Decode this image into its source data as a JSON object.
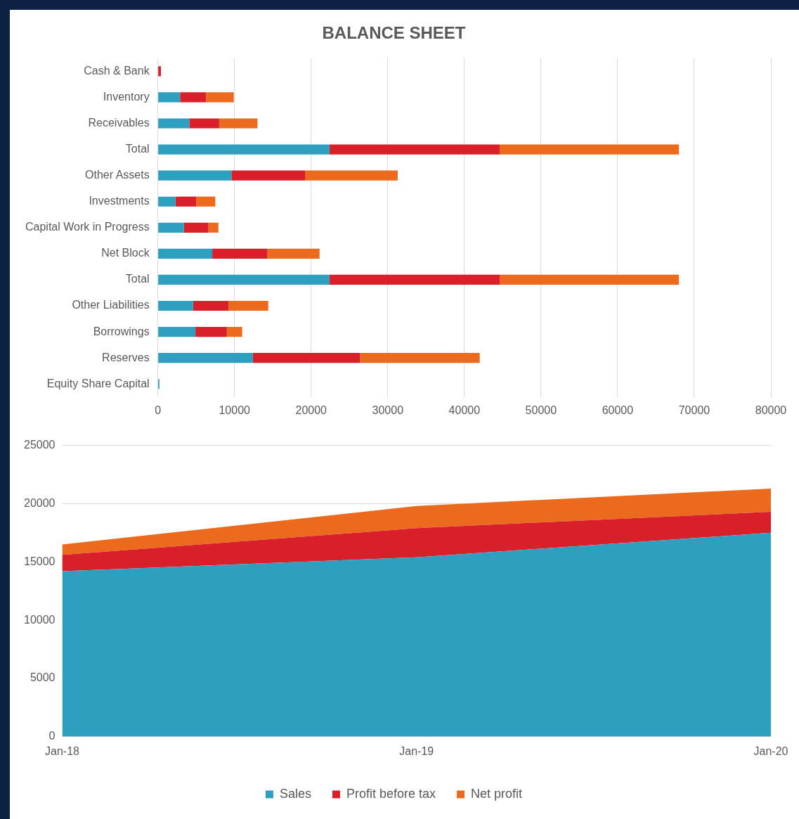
{
  "chart_data": [
    {
      "type": "bar",
      "title": "BALANCE SHEET",
      "orientation": "horizontal",
      "stacked": true,
      "categories": [
        "Cash & Bank",
        "Inventory",
        "Receivables",
        "Total",
        "Other Assets",
        "Investments",
        "Capital Work in Progress",
        "Net Block",
        "Total",
        "Other Liabilities",
        "Borrowings",
        "Reserves",
        "Equity Share Capital"
      ],
      "series": [
        {
          "color": "#2e9fbf",
          "values": [
            0,
            2900,
            4100,
            22400,
            9600,
            2300,
            3400,
            7100,
            22400,
            4600,
            4900,
            12400,
            200
          ]
        },
        {
          "color": "#d9202a",
          "values": [
            400,
            3400,
            3900,
            22200,
            9600,
            2700,
            3200,
            7200,
            22200,
            4600,
            4100,
            14000,
            0
          ]
        },
        {
          "color": "#ec6a1e",
          "values": [
            0,
            3600,
            5000,
            23400,
            12100,
            2500,
            1300,
            6800,
            23400,
            5200,
            2000,
            15600,
            0
          ]
        }
      ],
      "xlim": [
        0,
        80000
      ],
      "xticks": [
        0,
        10000,
        20000,
        30000,
        40000,
        50000,
        60000,
        70000,
        80000
      ],
      "grid": "x"
    },
    {
      "type": "area",
      "stacked": true,
      "categories": [
        "Jan-18",
        "Jan-19",
        "Jan-20"
      ],
      "series": [
        {
          "name": "Sales",
          "color": "#2e9fbf",
          "values": [
            14200,
            15400,
            17500
          ]
        },
        {
          "name": "Profit before tax",
          "color": "#d9202a",
          "values": [
            1400,
            2500,
            1800
          ]
        },
        {
          "name": "Net profit",
          "color": "#ec6a1e",
          "values": [
            900,
            1900,
            2000
          ]
        }
      ],
      "ylim": [
        0,
        25000
      ],
      "yticks": [
        0,
        5000,
        10000,
        15000,
        20000,
        25000
      ],
      "grid": "y",
      "legend": "bottom"
    }
  ]
}
